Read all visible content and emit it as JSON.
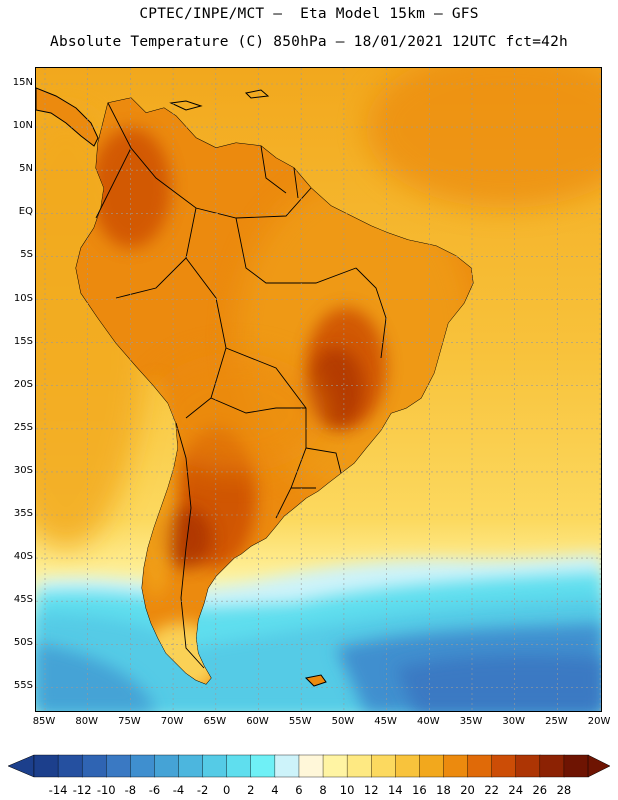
{
  "title_line1": "CPTEC/INPE/MCT –  Eta Model 15km – GFS",
  "title_line2": "Absolute Temperature (C) 850hPa – 18/01/2021 12UTC fct=42h",
  "latitude_labels": [
    "15N",
    "10N",
    "5N",
    "EQ",
    "5S",
    "10S",
    "15S",
    "20S",
    "25S",
    "30S",
    "35S",
    "40S",
    "45S",
    "50S",
    "55S"
  ],
  "longitude_labels": [
    "85W",
    "80W",
    "75W",
    "70W",
    "65W",
    "60W",
    "55W",
    "50W",
    "45W",
    "40W",
    "35W",
    "30W",
    "25W",
    "20W"
  ],
  "colorbar": {
    "labels": [
      "-14",
      "-12",
      "-10",
      "-8",
      "-6",
      "-4",
      "-2",
      "0",
      "2",
      "4",
      "6",
      "8",
      "10",
      "12",
      "14",
      "16",
      "18",
      "20",
      "22",
      "24",
      "26",
      "28"
    ],
    "colors": [
      "#1c3f8c",
      "#2550a0",
      "#2f64b3",
      "#3a79c3",
      "#3f8fcf",
      "#45a3d6",
      "#4cb6de",
      "#55cbe6",
      "#5fdeee",
      "#6ff0f6",
      "#cdf3fa",
      "#fff7d9",
      "#fff4a3",
      "#fee982",
      "#fcd95f",
      "#f8c33c",
      "#f2a81d",
      "#ec8a0e",
      "#e06a08",
      "#cc4d06",
      "#ad3504",
      "#8c2203",
      "#6e1402"
    ]
  },
  "colors": {
    "land_warm": "#ec8a0e",
    "land_hot": "#cc4d06",
    "ocean_warm": "#f2a81d",
    "ocean_mild": "#fcd95f",
    "ocean_cool": "#55cbe6",
    "ocean_cold": "#3f8fcf",
    "coastline": "#000000",
    "grid": "#9a9a9a"
  }
}
